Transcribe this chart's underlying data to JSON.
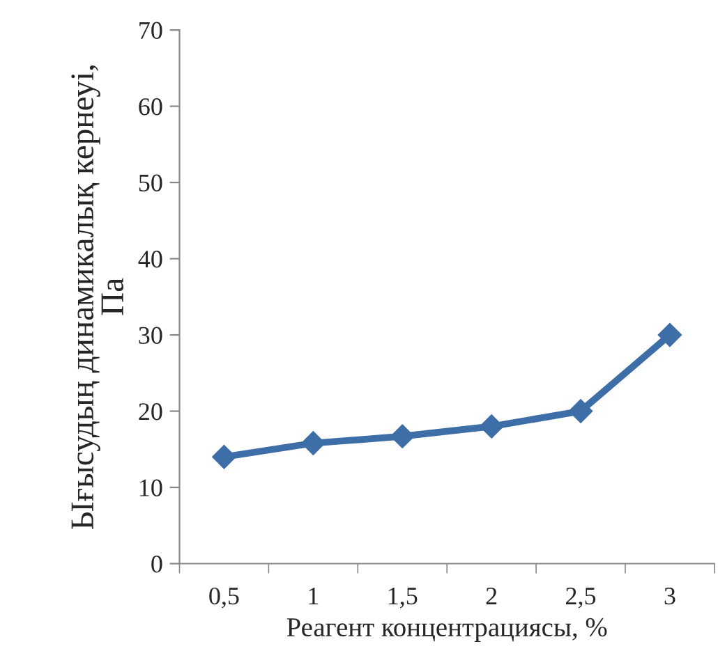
{
  "chart_data": {
    "type": "line",
    "xlabel": "Реагент концентрациясы, %",
    "ylabel": "Ығысудың динамикалық кернеуі, Па",
    "categories": [
      "0,5",
      "1",
      "1,5",
      "2",
      "2,5",
      "3"
    ],
    "series": [
      {
        "color": "#3d6ea8",
        "values": [
          14,
          15.8,
          16.7,
          18,
          20,
          30
        ]
      }
    ],
    "ylim": [
      0,
      70
    ],
    "yticks": [
      0,
      10,
      20,
      30,
      40,
      50,
      60,
      70
    ],
    "grid": false,
    "legend": false,
    "marker": "diamond",
    "line_style": "solid"
  }
}
